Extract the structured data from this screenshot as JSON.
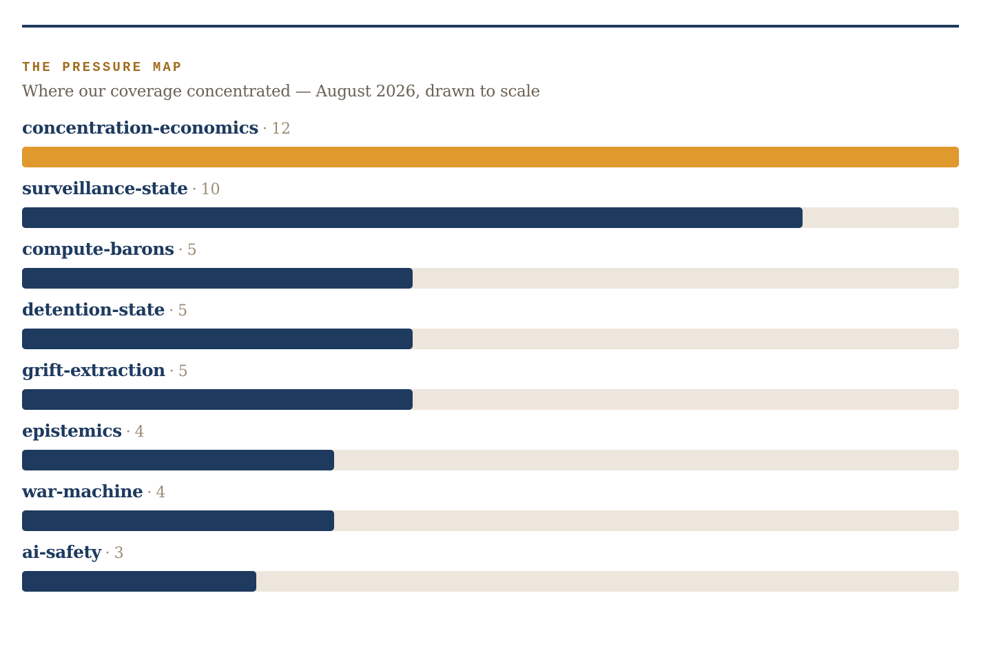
{
  "kicker": "THE PRESSURE MAP",
  "subtitle": "Where our coverage concentrated — August 2026, drawn to scale",
  "separator": "·",
  "colors": {
    "rule": "#1e3a5f",
    "bar": "#1e3a5f",
    "highlight": "#e0992c",
    "track": "#ede6dc",
    "kicker": "#a06e1e",
    "count": "#9a8c76"
  },
  "chart_data": {
    "type": "bar",
    "orientation": "horizontal",
    "title": "THE PRESSURE MAP",
    "subtitle": "Where our coverage concentrated — August 2026, drawn to scale",
    "categories": [
      "concentration-economics",
      "surveillance-state",
      "compute-barons",
      "detention-state",
      "grift-extraction",
      "epistemics",
      "war-machine",
      "ai-safety"
    ],
    "values": [
      12,
      10,
      5,
      5,
      5,
      4,
      4,
      3
    ],
    "xlim": [
      0,
      12
    ],
    "highlight_category": "concentration-economics",
    "grid": false,
    "legend": "none"
  }
}
